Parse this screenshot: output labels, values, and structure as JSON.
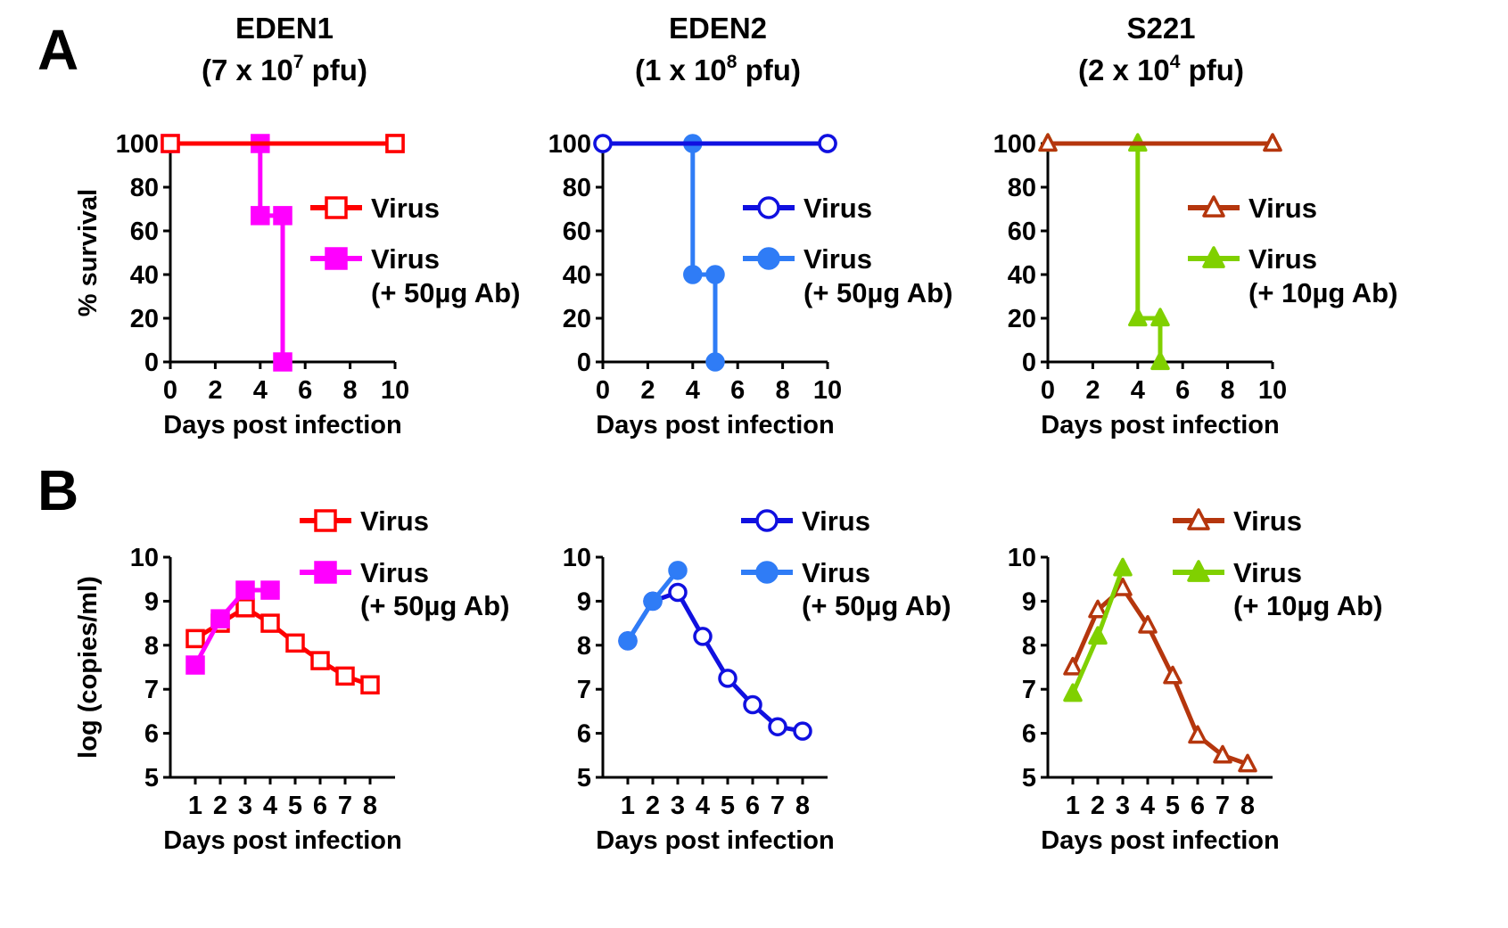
{
  "panel_letters": [
    "A",
    "B"
  ],
  "columns": [
    {
      "virus": "EDEN1",
      "dose_prefix": "(7 x 10",
      "dose_exp": "7",
      "dose_suffix": " pfu)"
    },
    {
      "virus": "EDEN2",
      "dose_prefix": "(1 x 10",
      "dose_exp": "8",
      "dose_suffix": " pfu)"
    },
    {
      "virus": "S221",
      "dose_prefix": "(2 x 10",
      "dose_exp": "4",
      "dose_suffix": " pfu)"
    }
  ],
  "chart_data": [
    {
      "type": "line",
      "panel": "A",
      "column": 0,
      "ylabel": "% survival",
      "xlabel": "Days post infection",
      "xlim": [
        0,
        10
      ],
      "ylim": [
        0,
        100
      ],
      "xticks": [
        0,
        2,
        4,
        6,
        8,
        10
      ],
      "yticks": [
        0,
        20,
        40,
        60,
        80,
        100
      ],
      "step": true,
      "series": [
        {
          "name": "Virus",
          "color": "#ff0000",
          "marker": "square-open",
          "x": [
            0,
            10
          ],
          "y": [
            100,
            100
          ]
        },
        {
          "name": "Virus",
          "name2": "(+ 50µg Ab)",
          "color": "#ff00ff",
          "marker": "square-filled",
          "x": [
            0,
            4,
            5
          ],
          "y": [
            100,
            67,
            0
          ]
        }
      ]
    },
    {
      "type": "line",
      "panel": "A",
      "column": 1,
      "ylabel": "",
      "xlabel": "Days post infection",
      "xlim": [
        0,
        10
      ],
      "ylim": [
        0,
        100
      ],
      "xticks": [
        0,
        2,
        4,
        6,
        8,
        10
      ],
      "yticks": [
        0,
        20,
        40,
        60,
        80,
        100
      ],
      "step": true,
      "series": [
        {
          "name": "Virus",
          "color": "#1010e0",
          "marker": "circle-open",
          "x": [
            0,
            10
          ],
          "y": [
            100,
            100
          ]
        },
        {
          "name": "Virus",
          "name2": "(+ 50µg Ab)",
          "color": "#2f7cf6",
          "marker": "circle-filled",
          "x": [
            0,
            4,
            5
          ],
          "y": [
            100,
            40,
            0
          ]
        }
      ]
    },
    {
      "type": "line",
      "panel": "A",
      "column": 2,
      "ylabel": "",
      "xlabel": "Days post infection",
      "xlim": [
        0,
        10
      ],
      "ylim": [
        0,
        100
      ],
      "xticks": [
        0,
        2,
        4,
        6,
        8,
        10
      ],
      "yticks": [
        0,
        20,
        40,
        60,
        80,
        100
      ],
      "step": true,
      "series": [
        {
          "name": "Virus",
          "color": "#b5360d",
          "marker": "triangle-open",
          "x": [
            0,
            10
          ],
          "y": [
            100,
            100
          ]
        },
        {
          "name": "Virus",
          "name2": "(+ 10µg Ab)",
          "color": "#80d000",
          "marker": "triangle-filled",
          "x": [
            0,
            4,
            5
          ],
          "y": [
            100,
            20,
            0
          ]
        }
      ]
    },
    {
      "type": "line",
      "panel": "B",
      "column": 0,
      "ylabel": "log (copies/ml)",
      "xlabel": "Days post infection",
      "xlim": [
        0,
        9
      ],
      "ylim": [
        5,
        10
      ],
      "xticks": [
        1,
        2,
        3,
        4,
        5,
        6,
        7,
        8
      ],
      "yticks": [
        5,
        6,
        7,
        8,
        9,
        10
      ],
      "step": false,
      "series": [
        {
          "name": "Virus",
          "color": "#ff0000",
          "marker": "square-open",
          "x": [
            1,
            2,
            3,
            4,
            5,
            6,
            7,
            8
          ],
          "y": [
            8.15,
            8.5,
            8.85,
            8.5,
            8.05,
            7.65,
            7.3,
            7.1
          ]
        },
        {
          "name": "Virus",
          "name2": "(+ 50µg Ab)",
          "color": "#ff00ff",
          "marker": "square-filled",
          "x": [
            1,
            2,
            3,
            4
          ],
          "y": [
            7.55,
            8.6,
            9.25,
            9.25
          ]
        }
      ]
    },
    {
      "type": "line",
      "panel": "B",
      "column": 1,
      "ylabel": "",
      "xlabel": "Days post infection",
      "xlim": [
        0,
        9
      ],
      "ylim": [
        5,
        10
      ],
      "xticks": [
        1,
        2,
        3,
        4,
        5,
        6,
        7,
        8
      ],
      "yticks": [
        5,
        6,
        7,
        8,
        9,
        10
      ],
      "step": false,
      "series": [
        {
          "name": "Virus",
          "color": "#1010e0",
          "marker": "circle-open",
          "x": [
            1,
            2,
            3,
            4,
            5,
            6,
            7,
            8
          ],
          "y": [
            8.1,
            9.0,
            9.2,
            8.2,
            7.25,
            6.65,
            6.15,
            6.05
          ]
        },
        {
          "name": "Virus",
          "name2": "(+ 50µg Ab)",
          "color": "#2f7cf6",
          "marker": "circle-filled",
          "x": [
            1,
            2,
            3
          ],
          "y": [
            8.1,
            9.0,
            9.7
          ]
        }
      ]
    },
    {
      "type": "line",
      "panel": "B",
      "column": 2,
      "ylabel": "",
      "xlabel": "Days post infection",
      "xlim": [
        0,
        9
      ],
      "ylim": [
        5,
        10
      ],
      "xticks": [
        1,
        2,
        3,
        4,
        5,
        6,
        7,
        8
      ],
      "yticks": [
        5,
        6,
        7,
        8,
        9,
        10
      ],
      "step": false,
      "series": [
        {
          "name": "Virus",
          "color": "#b5360d",
          "marker": "triangle-open",
          "x": [
            1,
            2,
            3,
            4,
            5,
            6,
            7,
            8
          ],
          "y": [
            7.5,
            8.8,
            9.3,
            8.45,
            7.3,
            5.95,
            5.5,
            5.3
          ]
        },
        {
          "name": "Virus",
          "name2": "(+ 10µg Ab)",
          "color": "#80d000",
          "marker": "triangle-filled",
          "x": [
            1,
            2,
            3
          ],
          "y": [
            6.9,
            8.2,
            9.75
          ]
        }
      ]
    }
  ]
}
